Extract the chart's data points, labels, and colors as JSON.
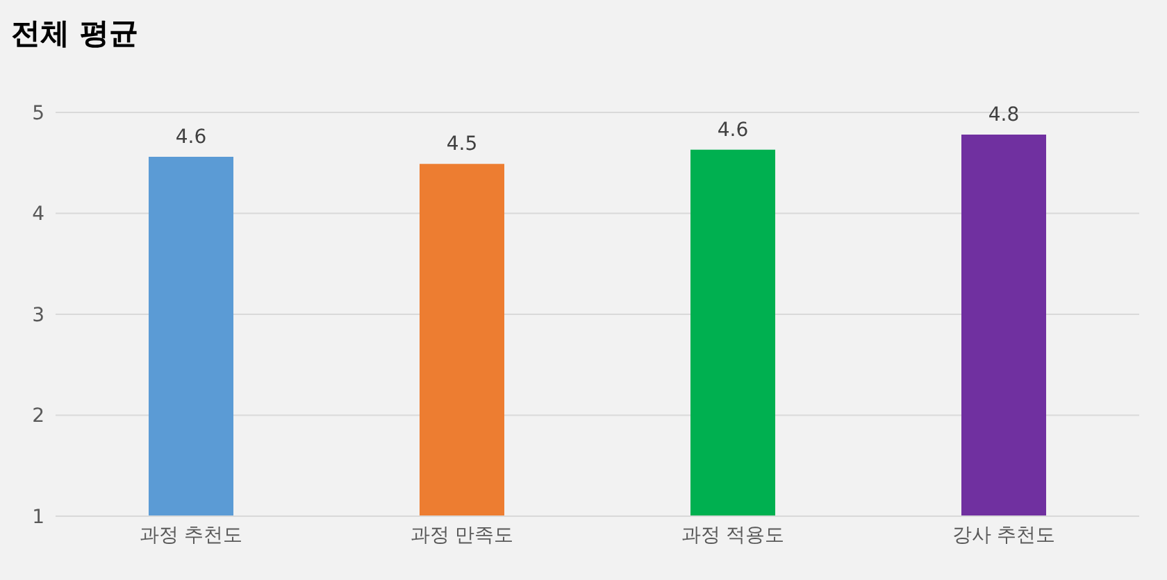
{
  "chart_data": {
    "type": "bar",
    "title": "전체 평균",
    "categories": [
      "과정 추천도",
      "과정 만족도",
      "과정 적용도",
      "강사 추천도"
    ],
    "values": [
      4.56,
      4.49,
      4.63,
      4.78
    ],
    "value_labels": [
      "4.6",
      "4.5",
      "4.6",
      "4.8"
    ],
    "colors": [
      "#5b9bd5",
      "#ed7d31",
      "#00b050",
      "#7030a0"
    ],
    "ylim": [
      1,
      5
    ],
    "yticks": [
      1,
      2,
      3,
      4,
      5
    ],
    "grid": "y",
    "legend": false
  }
}
